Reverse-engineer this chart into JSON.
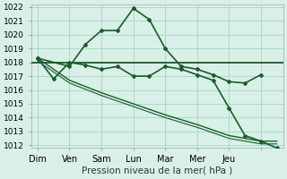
{
  "background_color": "#d8f0e8",
  "grid_color": "#b0d8c8",
  "line_color": "#1a5c2a",
  "xlabels": [
    "Dim",
    "Ven",
    "Sam",
    "Lun",
    "Mar",
    "Mer",
    "Jeu"
  ],
  "xlabel": "Pression niveau de la mer( hPa )",
  "ylim": [
    1012,
    1022
  ],
  "yticks": [
    1012,
    1013,
    1014,
    1015,
    1016,
    1017,
    1018,
    1019,
    1020,
    1021,
    1022
  ],
  "series1_x": [
    0,
    1,
    1.5,
    2,
    2.5,
    3,
    3.5,
    4,
    4.5,
    5,
    5.5,
    6,
    6.5,
    7
  ],
  "series1_y": [
    1018.3,
    1017.7,
    1019.3,
    1020.3,
    1020.3,
    1021.9,
    1021.1,
    1019.0,
    1017.7,
    1017.5,
    1017.1,
    1016.6,
    1016.5,
    1017.1
  ],
  "series2_x": [
    0,
    0.5,
    1,
    1.5,
    2,
    2.5,
    3,
    3.5,
    4,
    4.5,
    5,
    5.5,
    6,
    6.5,
    7,
    7.5
  ],
  "series2_y": [
    1018.3,
    1016.8,
    1018.0,
    1017.8,
    1017.5,
    1017.7,
    1017.0,
    1017.0,
    1017.7,
    1017.5,
    1017.1,
    1016.7,
    1014.7,
    1012.7,
    1012.3,
    1011.8
  ],
  "series3_x": [
    0,
    1,
    2,
    3,
    4,
    5,
    6,
    7,
    7.5
  ],
  "series3_y": [
    1018.3,
    1016.7,
    1015.8,
    1015.0,
    1014.2,
    1013.5,
    1012.7,
    1012.3,
    1012.3
  ],
  "series3b_y": [
    1018.1,
    1016.5,
    1015.6,
    1014.8,
    1014.0,
    1013.3,
    1012.5,
    1012.1,
    1012.1
  ],
  "hline_y": 1018.0,
  "x_tick_positions": [
    0,
    1,
    2,
    3,
    4,
    5,
    6,
    7
  ],
  "figsize": [
    3.2,
    2.0
  ],
  "dpi": 100
}
